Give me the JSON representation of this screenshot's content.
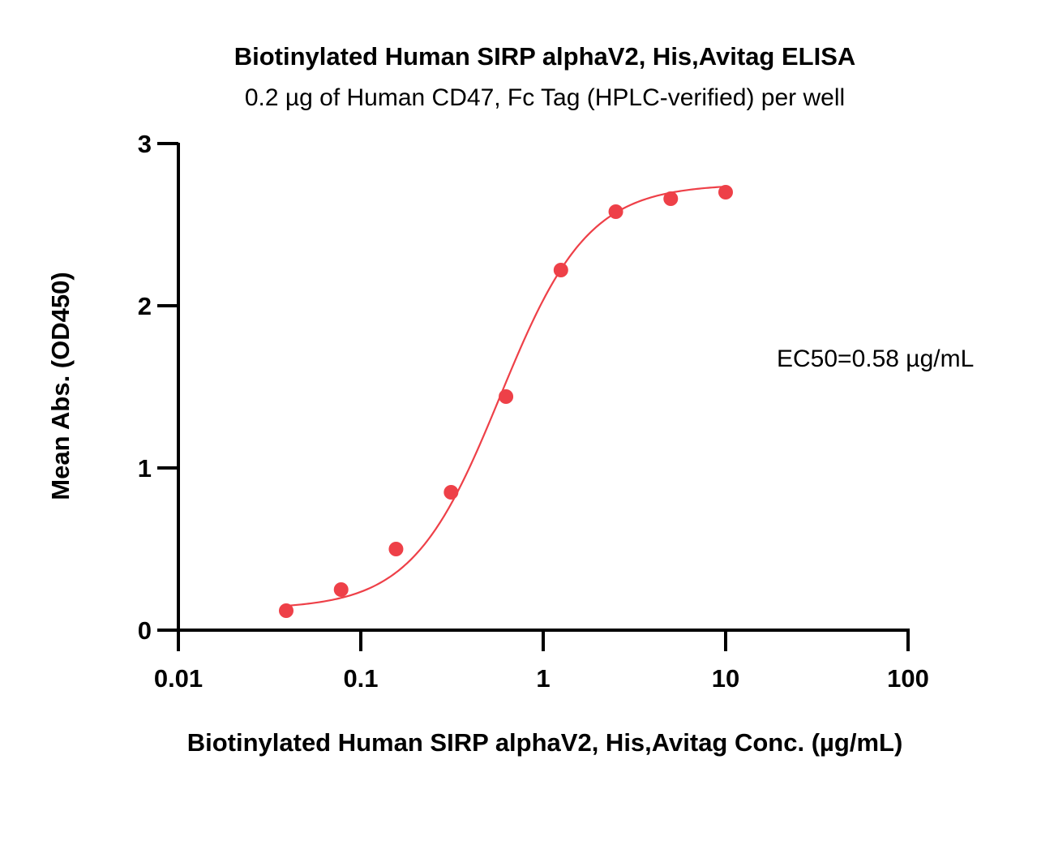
{
  "chart_data": {
    "type": "scatter",
    "title": "Biotinylated Human SIRP alphaV2, His,Avitag ELISA",
    "subtitle": "0.2 µg of Human CD47, Fc Tag (HPLC-verified) per well",
    "xlabel": "Biotinylated Human SIRP alphaV2, His,Avitag Conc. (µg/mL)",
    "ylabel": "Mean Abs. (OD450)",
    "xscale": "log",
    "xlim": [
      0.01,
      100
    ],
    "ylim": [
      0,
      3
    ],
    "x_ticks": [
      {
        "value": 0.01,
        "label": "0.01"
      },
      {
        "value": 0.1,
        "label": "0.1"
      },
      {
        "value": 1,
        "label": "1"
      },
      {
        "value": 10,
        "label": "10"
      },
      {
        "value": 100,
        "label": "100"
      }
    ],
    "y_ticks": [
      {
        "value": 0,
        "label": "0"
      },
      {
        "value": 1,
        "label": "1"
      },
      {
        "value": 2,
        "label": "2"
      },
      {
        "value": 3,
        "label": "3"
      }
    ],
    "grid": false,
    "marker_color": "#ee4048",
    "fit_color": "#ee4048",
    "series": [
      {
        "x": [
          0.039,
          0.078,
          0.156,
          0.3125,
          0.625,
          1.25,
          2.5,
          5,
          10
        ],
        "y": [
          0.12,
          0.25,
          0.5,
          0.85,
          1.44,
          2.22,
          2.58,
          2.66,
          2.7
        ]
      }
    ],
    "fit_curve": {
      "model": "4PL",
      "bottom": 0.13,
      "top": 2.75,
      "ec50": 0.58,
      "hill": 1.8,
      "x_range": [
        0.039,
        10
      ]
    },
    "annotation": "EC50=0.58 µg/mL"
  }
}
